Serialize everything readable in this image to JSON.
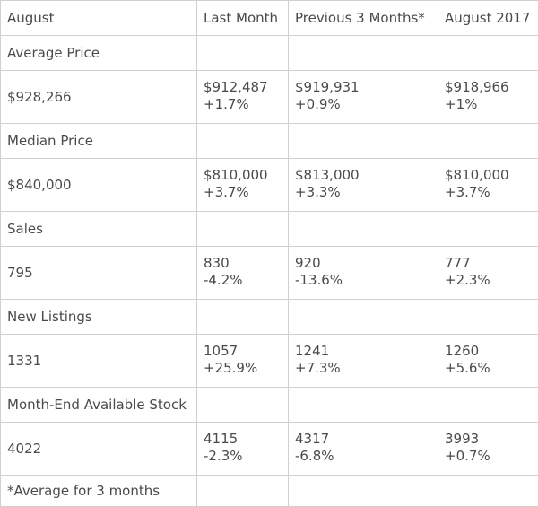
{
  "header": [
    "August",
    "Last Month",
    "Previous 3 Months*",
    "August 2017"
  ],
  "sections": [
    {
      "label": "Average Price",
      "value": "$928,266",
      "comparisons": [
        {
          "value": "$912,487",
          "change": "+1.7%"
        },
        {
          "value": "$919,931",
          "change": "+0.9%"
        },
        {
          "value": "$918,966",
          "change": "+1%"
        }
      ]
    },
    {
      "label": "Median Price",
      "value": "$840,000",
      "comparisons": [
        {
          "value": "$810,000",
          "change": "+3.7%"
        },
        {
          "value": "$813,000",
          "change": "+3.3%"
        },
        {
          "value": "$810,000",
          "change": "+3.7%"
        }
      ]
    },
    {
      "label": "Sales",
      "value": "795",
      "comparisons": [
        {
          "value": "830",
          "change": "-4.2%"
        },
        {
          "value": "920",
          "change": "-13.6%"
        },
        {
          "value": "777",
          "change": "+2.3%"
        }
      ]
    },
    {
      "label": "New Listings",
      "value": "1331",
      "comparisons": [
        {
          "value": "1057",
          "change": "+25.9%"
        },
        {
          "value": "1241",
          "change": "+7.3%"
        },
        {
          "value": "1260",
          "change": "+5.6%"
        }
      ]
    },
    {
      "label": "Month-End Available Stock",
      "value": "4022",
      "comparisons": [
        {
          "value": "4115",
          "change": "-2.3%"
        },
        {
          "value": "4317",
          "change": "-6.8%"
        },
        {
          "value": "3993",
          "change": "+0.7%"
        }
      ]
    }
  ],
  "footnote": "*Average for 3 months"
}
